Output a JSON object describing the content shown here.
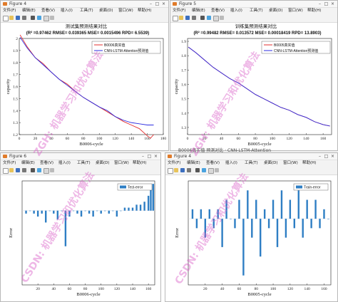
{
  "menu_items": [
    "文件(F)",
    "编辑(E)",
    "查看(V)",
    "插入(I)",
    "工具(T)",
    "桌面(D)",
    "窗口(W)",
    "帮助(H)"
  ],
  "win1": {
    "title": "Figure 4",
    "chart_title": "测试集预测结果对比",
    "metrics": "(R² =0.97462 RMSE= 0.039365 MSE= 0.0015496 RPD= 6.5539)",
    "ylabel": "capacity",
    "xlabel": "B0006-cycle",
    "legend": [
      "B0006真实值",
      "CNN-LSTM-Attention预测值"
    ],
    "yticks": [
      "1.2",
      "1.3",
      "1.4",
      "1.5",
      "1.6",
      "1.7",
      "1.8",
      "1.9",
      "2"
    ],
    "xticks": [
      "0",
      "20",
      "40",
      "60",
      "80",
      "100",
      "120",
      "140",
      "160",
      "180"
    ]
  },
  "win2": {
    "title": "Figure 5",
    "chart_title": "训练集预测结果对比",
    "metrics": "(R² =0.99482 RMSE= 0.013572 MSE= 0.00018419 RPD= 13.8903)",
    "ylabel": "capacity",
    "xlabel": "B0005-cycle",
    "legend": [
      "B0005真实值",
      "CNN-LSTM-Attention预测值"
    ],
    "yticks": [
      "1.3",
      "1.4",
      "1.5",
      "1.6",
      "1.7",
      "1.8",
      "1.9"
    ],
    "xticks": [
      "0",
      "20",
      "40",
      "60",
      "80",
      "100",
      "120",
      "140",
      "160"
    ]
  },
  "win3": {
    "title": "Figure 6",
    "ylabel": "Error",
    "xlabel": "B0006-cycle",
    "legend": "Test-error",
    "xticks": [
      "20",
      "40",
      "60",
      "80",
      "100",
      "120",
      "140",
      "160"
    ]
  },
  "win4": {
    "title": "Figure 4",
    "ylabel": "Error",
    "xlabel": "B0005-cycle",
    "legend": "Train-error",
    "xticks": [
      "20",
      "40",
      "60",
      "80",
      "100",
      "120",
      "140",
      "160"
    ]
  },
  "strip_text": "B0006真实值 预测对比 · CNN-LSTM-Attention",
  "watermark": {
    "line1": "ZGH: 机器学习和优化算法",
    "line2": "CSDN: 机器学习和优化算法"
  },
  "colors": {
    "accent_red": "#e32d2d",
    "accent_blue": "#2d2de0",
    "bar_blue": "#2e7ec4",
    "figure_icon": "#e07b2a"
  },
  "chart_data": [
    {
      "type": "line",
      "title": "测试集预测结果对比",
      "xlabel": "B0006-cycle",
      "ylabel": "capacity",
      "xlim": [
        0,
        180
      ],
      "ylim": [
        1.2,
        2.0
      ],
      "series": [
        {
          "name": "B0006真实值",
          "x": [
            1,
            10,
            20,
            30,
            40,
            50,
            60,
            70,
            80,
            90,
            100,
            110,
            120,
            130,
            140,
            150,
            160,
            164,
            168
          ],
          "values": [
            2.03,
            1.93,
            1.84,
            1.79,
            1.72,
            1.66,
            1.62,
            1.56,
            1.51,
            1.47,
            1.43,
            1.39,
            1.35,
            1.31,
            1.28,
            1.25,
            1.19,
            1.17,
            1.2
          ]
        },
        {
          "name": "CNN-LSTM-Attention预测值",
          "x": [
            1,
            10,
            20,
            30,
            40,
            50,
            60,
            70,
            80,
            90,
            100,
            110,
            120,
            130,
            140,
            150,
            160,
            168
          ],
          "values": [
            2.01,
            1.92,
            1.84,
            1.78,
            1.72,
            1.66,
            1.61,
            1.56,
            1.51,
            1.47,
            1.43,
            1.4,
            1.35,
            1.32,
            1.3,
            1.29,
            1.28,
            1.28
          ]
        }
      ]
    },
    {
      "type": "line",
      "title": "训练集预测结果对比",
      "xlabel": "B0005-cycle",
      "ylabel": "capacity",
      "xlim": [
        0,
        170
      ],
      "ylim": [
        1.25,
        1.92
      ],
      "series": [
        {
          "name": "B0005真实值",
          "x": [
            1,
            10,
            20,
            30,
            40,
            50,
            60,
            70,
            80,
            90,
            100,
            110,
            120,
            130,
            140,
            150,
            160,
            168
          ],
          "values": [
            1.86,
            1.82,
            1.77,
            1.72,
            1.68,
            1.64,
            1.61,
            1.57,
            1.53,
            1.5,
            1.47,
            1.44,
            1.42,
            1.39,
            1.37,
            1.34,
            1.32,
            1.31
          ]
        },
        {
          "name": "CNN-LSTM-Attention预测值",
          "x": [
            1,
            10,
            20,
            30,
            40,
            50,
            60,
            70,
            80,
            90,
            100,
            110,
            120,
            130,
            140,
            150,
            160,
            168
          ],
          "values": [
            1.86,
            1.82,
            1.77,
            1.72,
            1.68,
            1.64,
            1.61,
            1.57,
            1.53,
            1.5,
            1.47,
            1.44,
            1.42,
            1.39,
            1.37,
            1.34,
            1.32,
            1.31
          ]
        }
      ]
    },
    {
      "type": "bar",
      "xlabel": "B0006-cycle",
      "ylabel": "Error",
      "xlim": [
        0,
        168
      ],
      "ylim": [
        -0.25,
        0.1
      ],
      "series": [
        {
          "name": "Test-error",
          "x": [
            5,
            10,
            15,
            20,
            25,
            30,
            35,
            40,
            45,
            50,
            55,
            60,
            65,
            70,
            75,
            80,
            85,
            90,
            95,
            100,
            105,
            110,
            115,
            120,
            125,
            130,
            135,
            140,
            145,
            150,
            155,
            160,
            163,
            166
          ],
          "values": [
            -0.01,
            0.0,
            -0.01,
            -0.02,
            -0.01,
            -0.04,
            0.0,
            -0.01,
            -0.03,
            0.0,
            -0.12,
            -0.02,
            0.0,
            -0.01,
            -0.02,
            0.0,
            -0.01,
            -0.02,
            0.0,
            -0.01,
            0.0,
            -0.01,
            0.0,
            -0.02,
            0.0,
            0.01,
            0.01,
            0.01,
            0.02,
            0.02,
            0.03,
            0.05,
            0.07,
            0.09
          ]
        }
      ]
    },
    {
      "type": "bar",
      "xlabel": "B0005-cycle",
      "ylabel": "Error",
      "xlim": [
        0,
        168
      ],
      "ylim": [
        -0.07,
        0.04
      ],
      "series": [
        {
          "name": "Train-error",
          "x": [
            5,
            10,
            15,
            20,
            25,
            30,
            35,
            40,
            45,
            50,
            55,
            60,
            65,
            70,
            75,
            80,
            85,
            90,
            95,
            100,
            105,
            110,
            115,
            120,
            125,
            130,
            135,
            140,
            145,
            150,
            155,
            160,
            165
          ],
          "values": [
            0.01,
            -0.01,
            0.01,
            -0.02,
            0.01,
            -0.01,
            0.01,
            -0.03,
            0.02,
            0.0,
            -0.01,
            0.02,
            -0.06,
            0.03,
            -0.02,
            0.02,
            -0.04,
            0.01,
            -0.01,
            0.02,
            -0.03,
            0.03,
            -0.02,
            0.02,
            -0.01,
            0.03,
            -0.02,
            0.02,
            -0.01,
            0.02,
            -0.01,
            0.01,
            0.0
          ]
        }
      ]
    }
  ]
}
